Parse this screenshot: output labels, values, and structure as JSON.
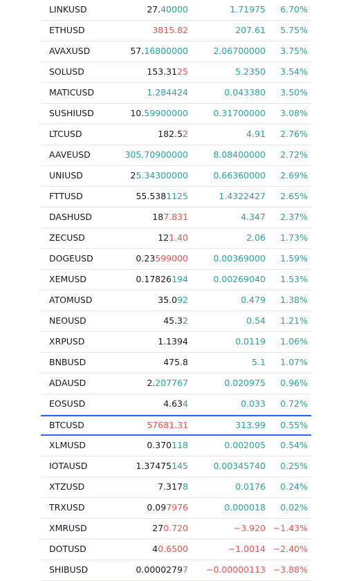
{
  "colors": {
    "up": "#26a69a",
    "down": "#ef5350",
    "neutral": "#131722",
    "selection": "#2962ff"
  },
  "watchlist": {
    "selected_symbol": "BTCUSD",
    "rows": [
      {
        "symbol": "LINKUSD",
        "last_base": "27.",
        "last_tail": "40000",
        "last_dir": "up",
        "change": "1.71975",
        "change_pct": "6.70%",
        "dir": "up"
      },
      {
        "symbol": "ETHUSD",
        "last_base": "",
        "last_tail": "3815.82",
        "last_dir": "down",
        "change": "207.61",
        "change_pct": "5.75%",
        "dir": "up"
      },
      {
        "symbol": "AVAXUSD",
        "last_base": "57.",
        "last_tail": "16800000",
        "last_dir": "up",
        "change": "2.06700000",
        "change_pct": "3.75%",
        "dir": "up"
      },
      {
        "symbol": "SOLUSD",
        "last_base": "153.31",
        "last_tail": "25",
        "last_dir": "down",
        "change": "5.2350",
        "change_pct": "3.54%",
        "dir": "up"
      },
      {
        "symbol": "MATICUSD",
        "last_base": "",
        "last_tail": "1.284424",
        "last_dir": "up",
        "change": "0.043380",
        "change_pct": "3.50%",
        "dir": "up"
      },
      {
        "symbol": "SUSHIUSD",
        "last_base": "10.",
        "last_tail": "59900000",
        "last_dir": "up",
        "change": "0.31700000",
        "change_pct": "3.08%",
        "dir": "up"
      },
      {
        "symbol": "LTCUSD",
        "last_base": "182.5",
        "last_tail": "2",
        "last_dir": "down",
        "change": "4.91",
        "change_pct": "2.76%",
        "dir": "up"
      },
      {
        "symbol": "AAVEUSD",
        "last_base": "",
        "last_tail": "305.70900000",
        "last_dir": "up",
        "change": "8.08400000",
        "change_pct": "2.72%",
        "dir": "up"
      },
      {
        "symbol": "UNIUSD",
        "last_base": "2",
        "last_tail": "5.34300000",
        "last_dir": "up",
        "change": "0.66360000",
        "change_pct": "2.69%",
        "dir": "up"
      },
      {
        "symbol": "FTTUSD",
        "last_base": "55.538",
        "last_tail": "1125",
        "last_dir": "up",
        "change": "1.4322427",
        "change_pct": "2.65%",
        "dir": "up"
      },
      {
        "symbol": "DASHUSD",
        "last_base": "18",
        "last_tail": "7.831",
        "last_dir": "down",
        "change": "4.347",
        "change_pct": "2.37%",
        "dir": "up"
      },
      {
        "symbol": "ZECUSD",
        "last_base": "12",
        "last_tail": "1.40",
        "last_dir": "down",
        "change": "2.06",
        "change_pct": "1.73%",
        "dir": "up"
      },
      {
        "symbol": "DOGEUSD",
        "last_base": "0.23",
        "last_tail": "599000",
        "last_dir": "down",
        "change": "0.00369000",
        "change_pct": "1.59%",
        "dir": "up"
      },
      {
        "symbol": "XEMUSD",
        "last_base": "0.17826",
        "last_tail": "194",
        "last_dir": "up",
        "change": "0.00269040",
        "change_pct": "1.53%",
        "dir": "up"
      },
      {
        "symbol": "ATOMUSD",
        "last_base": "35.0",
        "last_tail": "92",
        "last_dir": "up",
        "change": "0.479",
        "change_pct": "1.38%",
        "dir": "up"
      },
      {
        "symbol": "NEOUSD",
        "last_base": "45.3",
        "last_tail": "2",
        "last_dir": "up",
        "change": "0.54",
        "change_pct": "1.21%",
        "dir": "up"
      },
      {
        "symbol": "XRPUSD",
        "last_base": "1.1394",
        "last_tail": "",
        "last_dir": "up",
        "change": "0.0119",
        "change_pct": "1.06%",
        "dir": "up"
      },
      {
        "symbol": "BNBUSD",
        "last_base": "475.8",
        "last_tail": "",
        "last_dir": "up",
        "change": "5.1",
        "change_pct": "1.07%",
        "dir": "up"
      },
      {
        "symbol": "ADAUSD",
        "last_base": "2.",
        "last_tail": "207767",
        "last_dir": "up",
        "change": "0.020975",
        "change_pct": "0.96%",
        "dir": "up"
      },
      {
        "symbol": "EOSUSD",
        "last_base": "4.63",
        "last_tail": "4",
        "last_dir": "up",
        "change": "0.033",
        "change_pct": "0.72%",
        "dir": "up"
      },
      {
        "symbol": "BTCUSD",
        "last_base": "",
        "last_tail": "57681.31",
        "last_dir": "down",
        "change": "313.99",
        "change_pct": "0.55%",
        "dir": "up"
      },
      {
        "symbol": "XLMUSD",
        "last_base": "0.370",
        "last_tail": "118",
        "last_dir": "up",
        "change": "0.002005",
        "change_pct": "0.54%",
        "dir": "up"
      },
      {
        "symbol": "IOTAUSD",
        "last_base": "1.37475",
        "last_tail": "145",
        "last_dir": "up",
        "change": "0.00345740",
        "change_pct": "0.25%",
        "dir": "up"
      },
      {
        "symbol": "XTZUSD",
        "last_base": "7.317",
        "last_tail": "8",
        "last_dir": "up",
        "change": "0.0176",
        "change_pct": "0.24%",
        "dir": "up"
      },
      {
        "symbol": "TRXUSD",
        "last_base": "0.09",
        "last_tail": "7976",
        "last_dir": "down",
        "change": "0.000018",
        "change_pct": "0.02%",
        "dir": "up"
      },
      {
        "symbol": "XMRUSD",
        "last_base": "27",
        "last_tail": "0.720",
        "last_dir": "down",
        "change": "−3.920",
        "change_pct": "−1.43%",
        "dir": "down"
      },
      {
        "symbol": "DOTUSD",
        "last_base": "4",
        "last_tail": "0.6500",
        "last_dir": "down",
        "change": "−1.0014",
        "change_pct": "−2.40%",
        "dir": "down"
      },
      {
        "symbol": "SHIBUSD",
        "last_base": "0.0000279",
        "last_tail": "7",
        "last_dir": "down",
        "change": "−0.00000113",
        "change_pct": "−3.88%",
        "dir": "down"
      }
    ]
  }
}
